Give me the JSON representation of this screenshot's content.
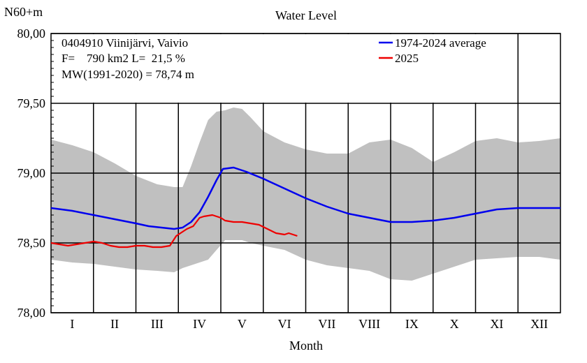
{
  "chart_data": {
    "type": "line",
    "title": "Water Level",
    "ylabel": "N60+m",
    "xlabel": "Month",
    "ylim": [
      78.0,
      80.0
    ],
    "y_ticks": [
      "78,00",
      "78,50",
      "79,00",
      "79,50",
      "80,00"
    ],
    "y_tick_values": [
      78.0,
      78.5,
      79.0,
      79.5,
      80.0
    ],
    "months": [
      "I",
      "II",
      "III",
      "IV",
      "V",
      "VI",
      "VII",
      "VIII",
      "IX",
      "X",
      "XI",
      "XII"
    ],
    "x_unit": "month (1 = start of January, 13 = end of December)",
    "info_lines": [
      "0404910 Viinijärvi, Vaivio",
      "F=    790 km2 L=  21,5 %",
      "MW(1991-2020) = 78,74 m"
    ],
    "grid": true,
    "legend_position": "top-right",
    "series": [
      {
        "name": "1974-2024 average",
        "color": "#0000ee",
        "x": [
          1.0,
          1.5,
          2.0,
          2.5,
          3.0,
          3.3,
          3.6,
          3.9,
          4.1,
          4.3,
          4.5,
          4.7,
          4.9,
          5.05,
          5.3,
          5.6,
          6.0,
          6.5,
          7.0,
          7.5,
          8.0,
          8.5,
          9.0,
          9.5,
          10.0,
          10.5,
          11.0,
          11.5,
          12.0,
          12.5,
          13.0
        ],
        "y": [
          78.75,
          78.73,
          78.7,
          78.67,
          78.64,
          78.62,
          78.61,
          78.6,
          78.61,
          78.65,
          78.72,
          78.83,
          78.95,
          79.03,
          79.04,
          79.01,
          78.96,
          78.89,
          78.82,
          78.76,
          78.71,
          78.68,
          78.65,
          78.65,
          78.66,
          78.68,
          78.71,
          78.74,
          78.75,
          78.75,
          78.75
        ]
      },
      {
        "name": "2025",
        "color": "#ee0000",
        "x": [
          1.0,
          1.2,
          1.4,
          1.6,
          1.8,
          2.0,
          2.2,
          2.4,
          2.6,
          2.8,
          3.0,
          3.2,
          3.4,
          3.6,
          3.8,
          3.95,
          4.1,
          4.2,
          4.35,
          4.5,
          4.6,
          4.8,
          5.0,
          5.1,
          5.3,
          5.5,
          5.7,
          5.9,
          6.1,
          6.3,
          6.5,
          6.6,
          6.7,
          6.8
        ],
        "y": [
          78.5,
          78.49,
          78.48,
          78.49,
          78.5,
          78.51,
          78.5,
          78.48,
          78.47,
          78.47,
          78.48,
          78.48,
          78.47,
          78.47,
          78.48,
          78.55,
          78.58,
          78.6,
          78.62,
          78.68,
          78.69,
          78.7,
          78.68,
          78.66,
          78.65,
          78.65,
          78.64,
          78.63,
          78.6,
          78.57,
          78.56,
          78.57,
          78.56,
          78.55
        ]
      }
    ],
    "band": {
      "color": "#c0c0c0",
      "x": [
        1.0,
        1.5,
        2.0,
        2.5,
        3.0,
        3.5,
        3.9,
        4.1,
        4.3,
        4.5,
        4.7,
        4.9,
        5.1,
        5.3,
        5.5,
        5.7,
        6.0,
        6.5,
        7.0,
        7.5,
        8.0,
        8.5,
        9.0,
        9.5,
        10.0,
        10.5,
        11.0,
        11.5,
        12.0,
        12.5,
        13.0
      ],
      "upper": [
        79.24,
        79.2,
        79.15,
        79.07,
        78.98,
        78.92,
        78.9,
        78.9,
        79.05,
        79.22,
        79.38,
        79.44,
        79.45,
        79.47,
        79.46,
        79.4,
        79.3,
        79.22,
        79.17,
        79.14,
        79.14,
        79.22,
        79.24,
        79.18,
        79.08,
        79.15,
        79.23,
        79.25,
        79.22,
        79.23,
        79.25
      ],
      "lower": [
        78.38,
        78.36,
        78.35,
        78.33,
        78.31,
        78.3,
        78.29,
        78.32,
        78.34,
        78.36,
        78.38,
        78.45,
        78.52,
        78.52,
        78.52,
        78.5,
        78.48,
        78.45,
        78.38,
        78.34,
        78.32,
        78.3,
        78.24,
        78.23,
        78.28,
        78.33,
        78.38,
        78.39,
        78.4,
        78.4,
        78.38
      ]
    }
  }
}
